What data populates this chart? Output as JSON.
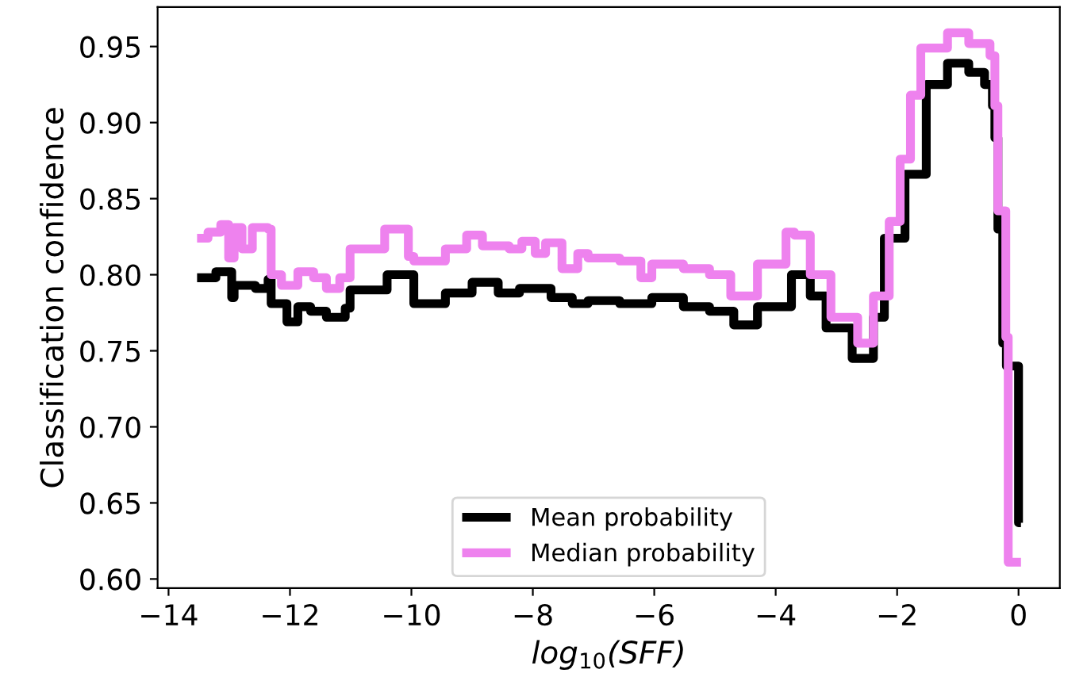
{
  "chart_data": {
    "type": "step",
    "xlabel": "log$_{10}$(SFF)",
    "ylabel": "Classification confidence",
    "xlim": [
      -14.18,
      0.68
    ],
    "ylim": [
      0.594,
      0.976
    ],
    "xticks": [
      {
        "value": -14,
        "label": "−14"
      },
      {
        "value": -12,
        "label": "−12"
      },
      {
        "value": -10,
        "label": "−10"
      },
      {
        "value": -8,
        "label": "−8"
      },
      {
        "value": -6,
        "label": "−6"
      },
      {
        "value": -4,
        "label": "−4"
      },
      {
        "value": -2,
        "label": "−2"
      },
      0
    ],
    "yticks": [
      {
        "value": 0.6,
        "label": "0.60"
      },
      {
        "value": 0.65,
        "label": "0.65"
      },
      {
        "value": 0.7,
        "label": "0.70"
      },
      {
        "value": 0.75,
        "label": "0.75"
      },
      {
        "value": 0.8,
        "label": "0.80"
      },
      {
        "value": 0.85,
        "label": "0.85"
      },
      {
        "value": 0.9,
        "label": "0.90"
      },
      {
        "value": 0.95,
        "label": "0.95"
      }
    ],
    "grid": false,
    "legend": "bottom",
    "line_style": "solid",
    "series": [
      {
        "name": "Mean probability",
        "color": "#000000",
        "x": [
          -13.53,
          -13.22,
          -12.96,
          -12.92,
          -12.57,
          -12.36,
          -12.31,
          -12.05,
          -11.87,
          -11.66,
          -11.4,
          -11.09,
          -11.01,
          -10.4,
          -9.96,
          -9.44,
          -9.0,
          -8.57,
          -8.22,
          -7.7,
          -7.35,
          -7.09,
          -6.57,
          -6.04,
          -5.52,
          -5.09,
          -4.69,
          -4.3,
          -3.74,
          -3.43,
          -3.17,
          -2.74,
          -2.39,
          -2.21,
          -1.87,
          -1.52,
          -1.17,
          -0.82,
          -0.56,
          -0.43,
          -0.39,
          -0.34,
          -0.26,
          -0.2,
          0.0,
          0.04
        ],
        "values": [
          0.798,
          0.802,
          0.785,
          0.793,
          0.791,
          0.797,
          0.781,
          0.769,
          0.779,
          0.776,
          0.772,
          0.778,
          0.79,
          0.8,
          0.781,
          0.788,
          0.795,
          0.788,
          0.791,
          0.785,
          0.781,
          0.783,
          0.781,
          0.785,
          0.779,
          0.776,
          0.767,
          0.779,
          0.8,
          0.786,
          0.765,
          0.745,
          0.772,
          0.824,
          0.866,
          0.925,
          0.939,
          0.933,
          0.925,
          0.911,
          0.89,
          0.83,
          0.755,
          0.74,
          0.637,
          0.637
        ]
      },
      {
        "name": "Median probability",
        "color": "#ee82ee",
        "x": [
          -13.53,
          -13.35,
          -13.14,
          -13.01,
          -12.92,
          -12.79,
          -12.62,
          -12.36,
          -12.31,
          -12.14,
          -11.87,
          -11.61,
          -11.4,
          -11.18,
          -11.01,
          -10.44,
          -10.05,
          -9.96,
          -9.44,
          -9.09,
          -8.83,
          -8.39,
          -8.18,
          -7.96,
          -7.79,
          -7.52,
          -7.26,
          -7.09,
          -6.57,
          -6.22,
          -6.04,
          -5.52,
          -5.09,
          -4.74,
          -4.3,
          -3.83,
          -3.69,
          -3.43,
          -3.09,
          -2.65,
          -2.39,
          -2.13,
          -1.95,
          -1.78,
          -1.61,
          -1.17,
          -0.82,
          -0.47,
          -0.39,
          -0.34,
          -0.21,
          -0.17,
          0.04
        ],
        "values": [
          0.824,
          0.828,
          0.833,
          0.811,
          0.831,
          0.817,
          0.831,
          0.83,
          0.8,
          0.793,
          0.802,
          0.798,
          0.791,
          0.798,
          0.817,
          0.83,
          0.812,
          0.809,
          0.817,
          0.826,
          0.819,
          0.817,
          0.822,
          0.814,
          0.821,
          0.804,
          0.814,
          0.811,
          0.809,
          0.798,
          0.807,
          0.804,
          0.8,
          0.786,
          0.807,
          0.828,
          0.826,
          0.8,
          0.772,
          0.755,
          0.786,
          0.835,
          0.876,
          0.918,
          0.949,
          0.959,
          0.952,
          0.944,
          0.911,
          0.842,
          0.759,
          0.611,
          0.611
        ]
      }
    ]
  }
}
